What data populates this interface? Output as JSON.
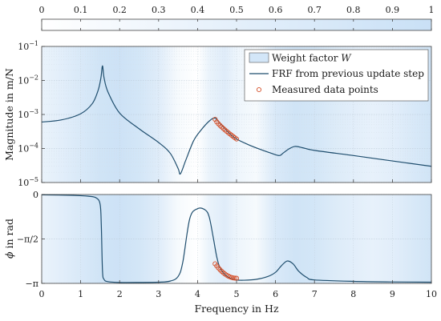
{
  "chart_data": {
    "type": "line",
    "colors": {
      "curve": "#1f4e6e",
      "measured": "#d5502a",
      "weight_light": "#eaf3fc",
      "weight_strong": "#cfe4f7",
      "frame": "#444444"
    },
    "colorbar": {
      "range": [
        0,
        1
      ],
      "ticks": [
        0,
        0.1,
        0.2,
        0.3,
        0.4,
        0.5,
        0.6,
        0.7,
        0.8,
        0.9,
        1
      ],
      "tick_labels": [
        "0",
        "0.1",
        "0.2",
        "0.3",
        "0.4",
        "0.5",
        "0.6",
        "0.7",
        "0.8",
        "0.9",
        "1"
      ]
    },
    "x_axis": {
      "label": "Frequency in Hz",
      "range": [
        0,
        10
      ],
      "ticks": [
        0,
        1,
        2,
        3,
        4,
        5,
        6,
        7,
        8,
        9,
        10
      ],
      "tick_labels": [
        "0",
        "1",
        "2",
        "3",
        "4",
        "5",
        "6",
        "7",
        "8",
        "9",
        "10"
      ]
    },
    "weight_factor": {
      "x": [
        0,
        0.5,
        1,
        1.5,
        2,
        2.5,
        3,
        3.5,
        4,
        4.3,
        4.7,
        5,
        5.5,
        6,
        6.5,
        7,
        7.5,
        8,
        8.5,
        9,
        9.5,
        10
      ],
      "w": [
        0.35,
        0.5,
        0.65,
        0.8,
        0.85,
        0.75,
        0.55,
        0.15,
        0.0,
        0.35,
        0.55,
        0.3,
        0.15,
        0.65,
        0.8,
        0.75,
        0.6,
        0.5,
        0.4,
        0.5,
        0.65,
        0.8
      ]
    },
    "magnitude": {
      "ylabel": "Magnitude in m/N",
      "scale": "log",
      "ylim": [
        1e-05,
        0.1
      ],
      "ticks": [
        1e-05,
        0.0001,
        0.001,
        0.01,
        0.1
      ],
      "tick_labels": [
        {
          "base": "10",
          "exp": "−5"
        },
        {
          "base": "10",
          "exp": "−4"
        },
        {
          "base": "10",
          "exp": "−3"
        },
        {
          "base": "10",
          "exp": "−2"
        },
        {
          "base": "10",
          "exp": "−1"
        }
      ],
      "legend": {
        "placement": "top-right",
        "weight": "Weight factor ",
        "weight_symbol": "W",
        "frf": "FRF from previous update step",
        "measured": "Measured data points"
      }
    },
    "phase": {
      "ylabel_symbol": "ϕ",
      "ylabel": " in rad",
      "ylim": [
        -3.1416,
        0
      ],
      "ticks": [
        0,
        -1.5708,
        -3.1416
      ],
      "tick_labels": [
        "0",
        "−π/2",
        "−π"
      ]
    },
    "frf": {
      "x": [
        0,
        0.5,
        1.0,
        1.3,
        1.45,
        1.52,
        1.56,
        1.6,
        1.7,
        2.0,
        2.5,
        3.0,
        3.3,
        3.5,
        3.56,
        3.7,
        3.9,
        4.1,
        4.3,
        4.45,
        4.6,
        4.8,
        5.0,
        5.3,
        5.6,
        5.9,
        6.1,
        6.2,
        6.35,
        6.5,
        6.7,
        7.0,
        8.0,
        9.0,
        10.0
      ],
      "magnitude": [
        0.0006,
        0.00069,
        0.00105,
        0.0021,
        0.0052,
        0.012,
        0.027,
        0.012,
        0.0046,
        0.0011,
        0.00038,
        0.00015,
        7.2e-05,
        2.6e-05,
        1.8e-05,
        4.6e-05,
        0.00017,
        0.00036,
        0.00064,
        0.00078,
        0.00052,
        0.00029,
        0.00019,
        0.00013,
        9.5e-05,
        7.2e-05,
        6.2e-05,
        7.4e-05,
        9.8e-05,
        0.000115,
        0.000105,
        8.8e-05,
        6.2e-05,
        4.3e-05,
        3e-05
      ],
      "phase_x": [
        0,
        0.8,
        1.2,
        1.4,
        1.5,
        1.53,
        1.56,
        1.6,
        1.7,
        2.0,
        2.5,
        3.0,
        3.3,
        3.5,
        3.62,
        3.8,
        4.0,
        4.2,
        4.3,
        4.4,
        4.5,
        4.6,
        4.8,
        5.0,
        5.2,
        5.5,
        5.8,
        6.0,
        6.15,
        6.3,
        6.45,
        6.6,
        6.8,
        7.0,
        8.0,
        9.0,
        10.0
      ],
      "phase": [
        -0.01,
        -0.03,
        -0.06,
        -0.12,
        -0.35,
        -1.1,
        -2.7,
        -3.0,
        -3.08,
        -3.11,
        -3.11,
        -3.1,
        -3.06,
        -2.9,
        -2.4,
        -0.85,
        -0.5,
        -0.55,
        -0.8,
        -1.5,
        -2.25,
        -2.65,
        -2.93,
        -3.02,
        -3.03,
        -3.0,
        -2.9,
        -2.75,
        -2.52,
        -2.35,
        -2.45,
        -2.72,
        -2.93,
        -3.02,
        -3.07,
        -3.09,
        -3.1
      ]
    },
    "measured_points": {
      "x_range": [
        4.45,
        5.0
      ],
      "count": 14,
      "magnitude_range": [
        0.00072,
        0.00019
      ],
      "phase_range": [
        -2.45,
        -2.96
      ]
    }
  }
}
